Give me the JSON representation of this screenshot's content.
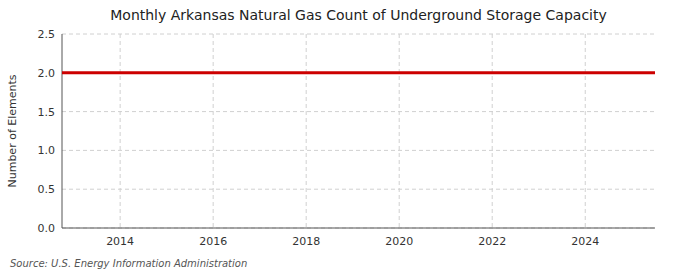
{
  "chart_data": {
    "type": "line",
    "title": "Monthly Arkansas Natural Gas Count of Underground Storage Capacity",
    "y_label": "Number of Elements",
    "source": "Source: U.S. Energy Information Administration",
    "x": [
      2012.75,
      2025.5
    ],
    "values": [
      2.0,
      2.0
    ],
    "color": "#cc0000",
    "xlim": [
      2012.75,
      2025.5
    ],
    "xticks": [
      2014,
      2016,
      2018,
      2020,
      2022,
      2024
    ],
    "ylim": [
      0.0,
      2.5
    ],
    "yticks": [
      {
        "value": 0.0,
        "label": "0.0"
      },
      0.5,
      {
        "value": 1.0,
        "label": "1.0"
      },
      1.5,
      {
        "value": 2.0,
        "label": "2.0"
      },
      2.5
    ],
    "grid": true
  }
}
